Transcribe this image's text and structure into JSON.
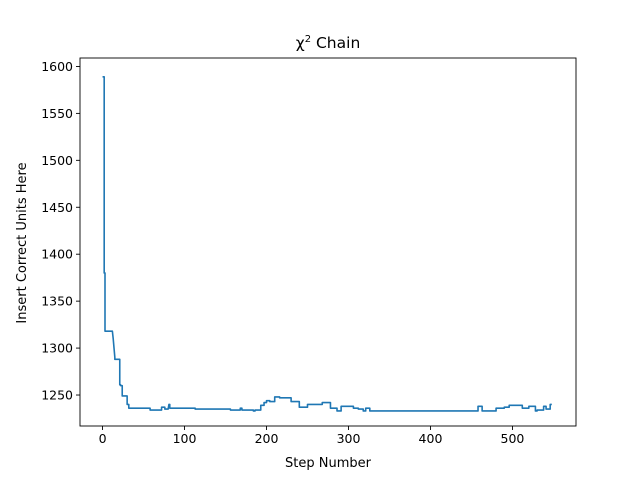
{
  "chart_data": {
    "type": "line",
    "title_base": "χ",
    "title_sup": "2",
    "title_rest": " Chain",
    "xlabel": "Step Number",
    "ylabel": "Insert Correct Units Here",
    "xlim": [
      -27.5,
      577.5
    ],
    "ylim": [
      1217,
      1609
    ],
    "xticks": [
      0,
      100,
      200,
      300,
      400,
      500
    ],
    "yticks": [
      1250,
      1300,
      1350,
      1400,
      1450,
      1500,
      1550,
      1600
    ],
    "grid": false,
    "series": [
      {
        "color": "#1f77b4",
        "x": [
          0,
          2,
          2,
          3,
          3,
          12,
          13,
          14,
          15,
          15,
          21,
          21,
          22,
          22,
          24,
          24,
          30,
          30,
          32,
          32,
          58,
          58,
          72,
          72,
          76,
          76,
          80,
          81,
          82,
          82,
          113,
          113,
          156,
          156,
          168,
          168,
          170,
          170,
          184,
          184,
          186,
          186,
          193,
          193,
          197,
          197,
          200,
          200,
          204,
          204,
          210,
          210,
          216,
          216,
          230,
          230,
          240,
          240,
          250,
          250,
          268,
          268,
          278,
          278,
          286,
          286,
          291,
          291,
          306,
          306,
          312,
          312,
          318,
          318,
          321,
          321,
          326,
          326,
          458,
          458,
          463,
          463,
          480,
          480,
          490,
          490,
          496,
          496,
          512,
          512,
          520,
          520,
          528,
          528,
          530,
          530,
          538,
          538,
          541,
          541,
          546,
          546,
          548
        ],
        "y": [
          1589,
          1589,
          1380,
          1380,
          1318,
          1318,
          1310,
          1300,
          1290,
          1288,
          1288,
          1261,
          1261,
          1260,
          1260,
          1249,
          1249,
          1240,
          1240,
          1236,
          1236,
          1234,
          1234,
          1237,
          1237,
          1235,
          1235,
          1240,
          1240,
          1236,
          1236,
          1235,
          1235,
          1234,
          1234,
          1236,
          1236,
          1234,
          1234,
          1233,
          1233,
          1234,
          1234,
          1239,
          1239,
          1242,
          1242,
          1244,
          1244,
          1243,
          1243,
          1248,
          1248,
          1247,
          1247,
          1243,
          1243,
          1237,
          1237,
          1240,
          1240,
          1242,
          1242,
          1236,
          1236,
          1233,
          1233,
          1238,
          1238,
          1236,
          1236,
          1235,
          1235,
          1233,
          1233,
          1236,
          1236,
          1233,
          1233,
          1238,
          1238,
          1233,
          1233,
          1236,
          1236,
          1237,
          1237,
          1239,
          1239,
          1236,
          1236,
          1238,
          1238,
          1233,
          1233,
          1234,
          1234,
          1238,
          1238,
          1235,
          1235,
          1240,
          1240
        ]
      }
    ]
  }
}
